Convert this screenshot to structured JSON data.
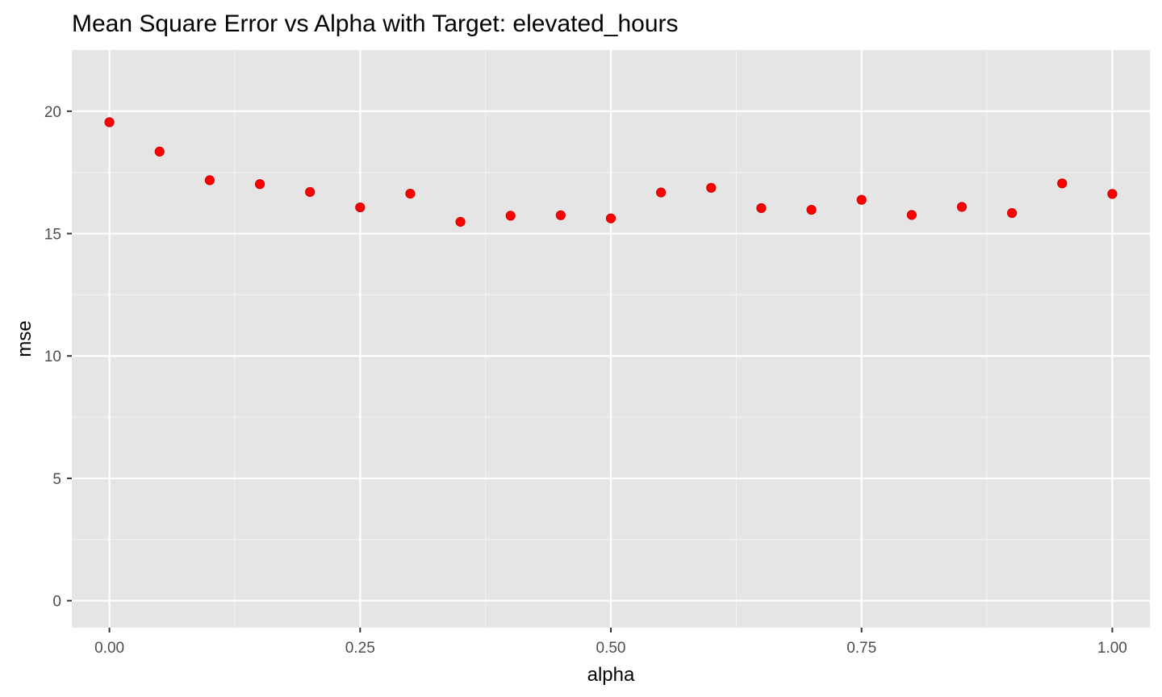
{
  "chart_data": {
    "type": "scatter",
    "title": "Mean Square Error vs Alpha with Target: elevated_hours",
    "xlabel": "alpha",
    "ylabel": "mse",
    "xlim": [
      -0.0375,
      1.0375
    ],
    "ylim": [
      -1.1,
      22.5
    ],
    "x_ticks": [
      0,
      0.25,
      0.5,
      0.75,
      1.0
    ],
    "x_tick_labels": [
      "0.00",
      "0.25",
      "0.50",
      "0.75",
      "1.00"
    ],
    "x_minor_ticks": [
      0.125,
      0.375,
      0.625,
      0.875
    ],
    "y_ticks": [
      0,
      5,
      10,
      15,
      20
    ],
    "y_tick_labels": [
      "0",
      "5",
      "10",
      "15",
      "20"
    ],
    "y_minor_ticks": [
      2.5,
      7.5,
      12.5,
      17.5
    ],
    "grid": true,
    "legend": "none",
    "colors": {
      "point_fill": "#ff0000",
      "point_stroke": "#cc0000",
      "panel_background": "#e5e5e5",
      "grid_major": "#ffffff",
      "grid_minor": "#f2f2f2"
    },
    "series": [
      {
        "x": [
          0.0,
          0.05,
          0.1,
          0.15,
          0.2,
          0.25,
          0.3,
          0.35,
          0.4,
          0.45,
          0.5,
          0.55,
          0.6,
          0.65,
          0.7,
          0.75,
          0.8,
          0.85,
          0.9,
          0.95,
          1.0
        ],
        "y": [
          19.55,
          18.35,
          17.18,
          17.02,
          16.7,
          16.07,
          16.63,
          15.48,
          15.73,
          15.75,
          15.62,
          16.68,
          16.87,
          16.04,
          15.97,
          16.38,
          15.76,
          16.09,
          15.84,
          17.05,
          16.62
        ]
      }
    ]
  }
}
